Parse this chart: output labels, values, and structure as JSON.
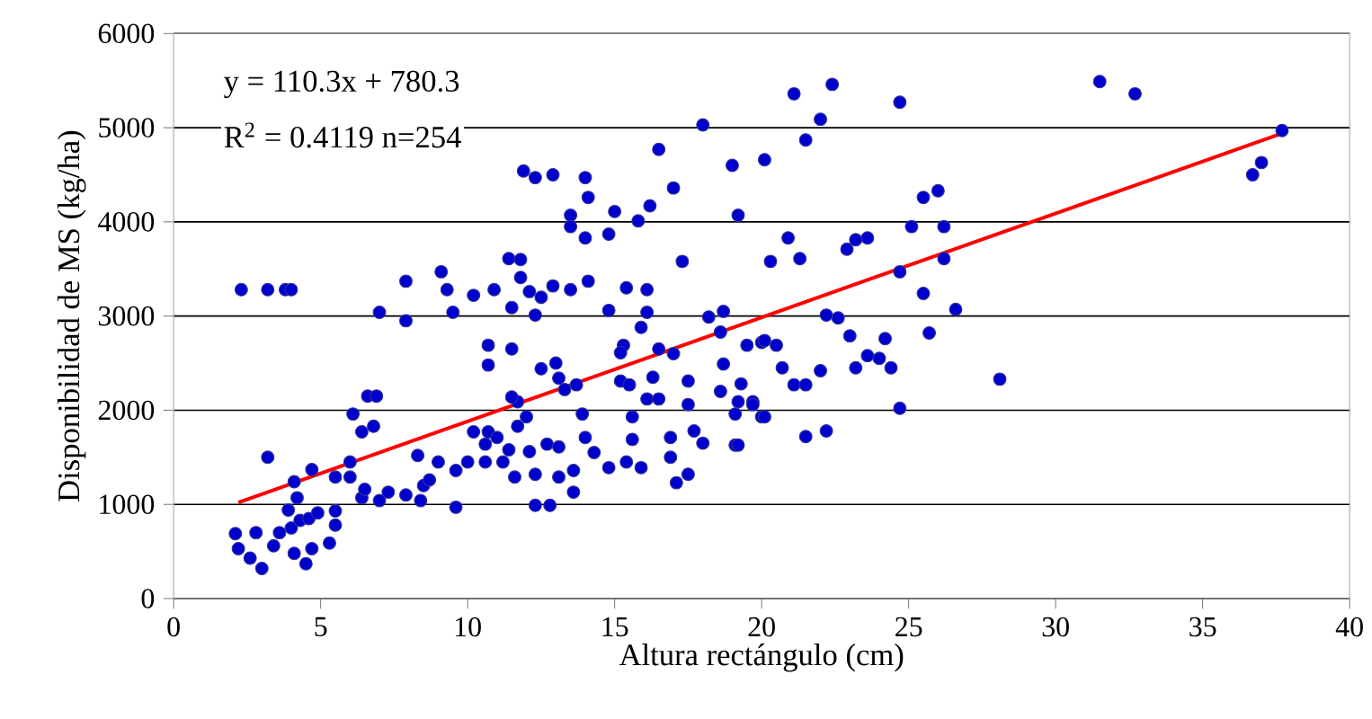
{
  "chart_data": {
    "type": "scatter",
    "xlabel": "Altura rectángulo (cm)",
    "ylabel": "Disponibilidad de MS (kg/ha)",
    "annotations": [
      "y = 110.3x + 780.3",
      "R$^{2}$ = 0.4119 n=254"
    ],
    "xlim": [
      0,
      40
    ],
    "xticks": [
      0,
      5,
      10,
      15,
      20,
      25,
      30,
      35,
      40
    ],
    "ylim": [
      0,
      6000
    ],
    "yticks": [
      0,
      1000,
      2000,
      3000,
      4000,
      5000,
      6000
    ],
    "grid": "y",
    "marker": "circle",
    "series": [
      {
        "color": "#333399",
        "x": [
          2.3,
          3.2,
          3.8,
          4.0,
          3.2,
          2.1,
          2.2,
          2.8,
          2.6,
          3.0,
          3.4,
          3.6,
          4.0,
          4.1,
          4.5,
          4.7,
          3.9,
          4.2,
          4.3,
          4.6,
          4.9,
          4.1,
          4.7,
          5.3,
          5.5,
          5.5,
          5.5,
          6.0,
          6.0,
          6.4,
          6.5,
          7.0,
          7.3,
          7.9,
          8.4,
          8.5,
          8.7,
          8.3,
          9.0,
          9.6,
          9.6,
          10.0,
          10.6,
          10.6,
          10.2,
          10.7,
          11.0,
          11.2,
          11.6,
          11.4,
          11.7,
          12.0,
          11.7,
          11.5,
          12.1,
          12.3,
          12.3,
          12.8,
          12.7,
          13.1,
          13.1,
          13.6,
          13.6,
          13.9,
          14.0,
          14.3,
          14.8,
          15.4,
          15.9,
          15.6,
          15.6,
          16.1,
          16.5,
          16.9,
          16.9,
          17.1,
          17.5,
          17.5,
          17.7,
          18.0,
          18.6,
          19.1,
          19.1,
          19.3,
          19.7,
          20.0,
          6.1,
          6.4,
          6.6,
          6.9,
          6.8,
          7.0,
          7.9,
          7.9,
          9.1,
          9.3,
          9.5,
          10.2,
          10.7,
          10.7,
          11.5,
          10.9,
          11.5,
          11.4,
          11.8,
          11.8,
          12.1,
          12.3,
          12.5,
          12.9,
          13.5,
          11.9,
          12.3,
          12.9,
          12.5,
          13.0,
          13.1,
          13.3,
          13.7,
          14.1,
          14.0,
          14.1,
          13.5,
          13.5,
          14.0,
          14.8,
          15.0,
          14.8,
          15.4,
          15.8,
          16.2,
          16.5,
          17.0,
          17.3,
          16.1,
          16.1,
          15.9,
          15.3,
          15.2,
          16.5,
          17.0,
          16.3,
          17.5,
          15.2,
          15.5,
          18.0,
          18.2,
          18.7,
          18.6,
          18.7,
          19.0,
          19.2,
          19.5,
          19.2,
          20.1,
          20.3,
          20.0,
          21.1,
          22.4,
          22.0,
          21.5,
          24.7,
          31.5,
          32.7,
          37.7,
          37.0,
          36.7,
          25.5,
          26.0,
          25.1,
          26.2,
          20.9,
          22.9,
          23.2,
          23.6,
          21.3,
          24.7,
          26.2,
          25.5,
          26.6,
          22.2,
          22.6,
          23.0,
          24.2,
          25.7,
          20.1,
          20.5,
          20.7,
          23.6,
          24.0,
          24.4,
          23.2,
          22.0,
          21.1,
          21.5,
          19.7,
          20.1,
          19.2,
          21.5,
          22.2,
          24.7,
          28.1
        ],
        "values": [
          3280,
          3280,
          3280,
          3280,
          1500,
          690,
          530,
          700,
          430,
          320,
          560,
          700,
          750,
          480,
          370,
          530,
          940,
          1070,
          830,
          850,
          910,
          1240,
          1370,
          590,
          780,
          930,
          1290,
          1290,
          1450,
          1070,
          1160,
          1040,
          1130,
          1100,
          1040,
          1200,
          1260,
          1520,
          1450,
          1360,
          970,
          1450,
          1450,
          1640,
          1770,
          1770,
          1710,
          1450,
          1290,
          1580,
          1830,
          1930,
          2090,
          2140,
          1560,
          1320,
          990,
          990,
          1640,
          1610,
          1290,
          1130,
          1360,
          1960,
          1710,
          1550,
          1390,
          1450,
          1390,
          1930,
          1690,
          2120,
          2120,
          1710,
          1500,
          1230,
          1320,
          2060,
          1780,
          1650,
          2200,
          1960,
          1630,
          2280,
          2090,
          1930,
          1960,
          1770,
          2150,
          2150,
          1830,
          3040,
          3370,
          2950,
          3470,
          3280,
          3040,
          3220,
          2690,
          2480,
          2650,
          3280,
          3090,
          3610,
          3600,
          3410,
          3260,
          3010,
          3200,
          3320,
          3280,
          4540,
          4470,
          4500,
          2440,
          2500,
          2340,
          2220,
          2270,
          3370,
          4470,
          4260,
          4070,
          3950,
          3830,
          3870,
          4110,
          3060,
          3300,
          4010,
          4170,
          4770,
          4360,
          3580,
          3280,
          3040,
          2880,
          2690,
          2610,
          2650,
          2600,
          2350,
          2310,
          2310,
          2270,
          5030,
          2990,
          3050,
          2830,
          2490,
          4600,
          4070,
          2690,
          2090,
          4660,
          3580,
          2720,
          5360,
          5460,
          5090,
          4870,
          5270,
          5490,
          5360,
          4970,
          4630,
          4500,
          4260,
          4330,
          3950,
          3950,
          3830,
          3710,
          3810,
          3830,
          3610,
          3470,
          3610,
          3240,
          3070,
          3010,
          2980,
          2790,
          2760,
          2820,
          2740,
          2690,
          2450,
          2580,
          2550,
          2450,
          2450,
          2420,
          2270,
          2270,
          2060,
          1930,
          1630,
          1720,
          1780,
          2020,
          2330
        ]
      },
      {
        "type": "line",
        "color": "#ff0000",
        "marker": "none",
        "x": [
          2.2,
          37.7
        ],
        "values": [
          1020,
          4940
        ]
      }
    ]
  }
}
